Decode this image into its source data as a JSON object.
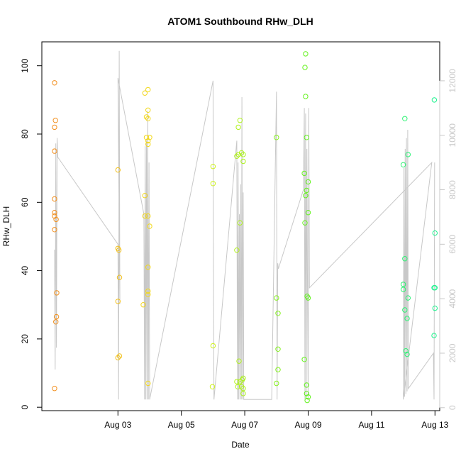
{
  "chart_data": {
    "type": "scatter",
    "title": "ATOM1 Southbound RHw_DLH",
    "xlabel": "Date",
    "ylabel": "RHw_DLH",
    "xlim": [
      0.6,
      13.15
    ],
    "ylim": [
      -1,
      107
    ],
    "x_ticks": [
      {
        "x": 3,
        "label": "Aug 03"
      },
      {
        "x": 5,
        "label": "Aug 05"
      },
      {
        "x": 7,
        "label": "Aug 07"
      },
      {
        "x": 9,
        "label": "Aug 09"
      },
      {
        "x": 11,
        "label": "Aug 11"
      },
      {
        "x": 13,
        "label": "Aug 13"
      }
    ],
    "y_ticks": [
      0,
      20,
      40,
      60,
      80,
      100
    ],
    "y2_ticks": [
      0,
      2000,
      4000,
      6000,
      8000,
      10000,
      12000
    ],
    "y2lim": [
      -110,
      13430
    ],
    "colors": {
      "line": "#c8c8c8",
      "axis": "#000000",
      "secondary_axis": "#c8c8c8",
      "scatter_ramp": [
        "#f28e1c",
        "#f2f21c",
        "#60f21c",
        "#1cf28e"
      ]
    },
    "scatter": [
      {
        "x": 1.0,
        "y": 95
      },
      {
        "x": 1.03,
        "y": 84
      },
      {
        "x": 1.0,
        "y": 82
      },
      {
        "x": 1.0,
        "y": 75
      },
      {
        "x": 1.0,
        "y": 61
      },
      {
        "x": 1.0,
        "y": 57
      },
      {
        "x": 1.0,
        "y": 56
      },
      {
        "x": 1.05,
        "y": 55
      },
      {
        "x": 1.0,
        "y": 52
      },
      {
        "x": 1.07,
        "y": 33.5
      },
      {
        "x": 1.06,
        "y": 26.5
      },
      {
        "x": 1.04,
        "y": 25
      },
      {
        "x": 1.0,
        "y": 5.5
      },
      {
        "x": 3.0,
        "y": 69.5
      },
      {
        "x": 3.0,
        "y": 46.5
      },
      {
        "x": 3.03,
        "y": 46
      },
      {
        "x": 3.05,
        "y": 38
      },
      {
        "x": 3.0,
        "y": 31
      },
      {
        "x": 3.05,
        "y": 15
      },
      {
        "x": 3.0,
        "y": 14.5
      },
      {
        "x": 3.85,
        "y": 92
      },
      {
        "x": 3.95,
        "y": 93
      },
      {
        "x": 3.95,
        "y": 87
      },
      {
        "x": 3.9,
        "y": 85
      },
      {
        "x": 3.95,
        "y": 84.5
      },
      {
        "x": 3.9,
        "y": 79
      },
      {
        "x": 4.0,
        "y": 79
      },
      {
        "x": 3.95,
        "y": 78
      },
      {
        "x": 3.95,
        "y": 77
      },
      {
        "x": 3.85,
        "y": 62
      },
      {
        "x": 3.85,
        "y": 56
      },
      {
        "x": 3.95,
        "y": 56
      },
      {
        "x": 4.0,
        "y": 53
      },
      {
        "x": 3.95,
        "y": 41
      },
      {
        "x": 3.95,
        "y": 34
      },
      {
        "x": 3.95,
        "y": 33
      },
      {
        "x": 3.8,
        "y": 30
      },
      {
        "x": 3.95,
        "y": 7
      },
      {
        "x": 6.0,
        "y": 70.5
      },
      {
        "x": 6.0,
        "y": 65.5
      },
      {
        "x": 6.0,
        "y": 18
      },
      {
        "x": 5.98,
        "y": 6
      },
      {
        "x": 6.75,
        "y": 46
      },
      {
        "x": 6.8,
        "y": 82
      },
      {
        "x": 6.85,
        "y": 84
      },
      {
        "x": 6.8,
        "y": 74
      },
      {
        "x": 6.75,
        "y": 73.5
      },
      {
        "x": 6.9,
        "y": 74.5
      },
      {
        "x": 6.95,
        "y": 74
      },
      {
        "x": 6.95,
        "y": 72
      },
      {
        "x": 6.85,
        "y": 54
      },
      {
        "x": 6.82,
        "y": 13.5
      },
      {
        "x": 6.75,
        "y": 7.5
      },
      {
        "x": 6.85,
        "y": 7.5
      },
      {
        "x": 6.92,
        "y": 8
      },
      {
        "x": 6.95,
        "y": 8.5
      },
      {
        "x": 6.78,
        "y": 6
      },
      {
        "x": 6.9,
        "y": 6
      },
      {
        "x": 6.95,
        "y": 5.5
      },
      {
        "x": 6.95,
        "y": 4
      },
      {
        "x": 8.0,
        "y": 79
      },
      {
        "x": 8.0,
        "y": 32
      },
      {
        "x": 8.05,
        "y": 27.5
      },
      {
        "x": 8.05,
        "y": 17
      },
      {
        "x": 8.05,
        "y": 11
      },
      {
        "x": 8.0,
        "y": 7
      },
      {
        "x": 8.92,
        "y": 103.5
      },
      {
        "x": 8.9,
        "y": 99.5
      },
      {
        "x": 8.92,
        "y": 91
      },
      {
        "x": 8.95,
        "y": 79
      },
      {
        "x": 8.88,
        "y": 68.5
      },
      {
        "x": 9.0,
        "y": 66
      },
      {
        "x": 8.95,
        "y": 63.5
      },
      {
        "x": 8.92,
        "y": 62
      },
      {
        "x": 9.0,
        "y": 57
      },
      {
        "x": 8.9,
        "y": 54
      },
      {
        "x": 8.97,
        "y": 32.5
      },
      {
        "x": 9.0,
        "y": 32
      },
      {
        "x": 8.88,
        "y": 14
      },
      {
        "x": 8.95,
        "y": 6.5
      },
      {
        "x": 8.95,
        "y": 4
      },
      {
        "x": 9.0,
        "y": 3
      },
      {
        "x": 8.97,
        "y": 2
      },
      {
        "x": 12.0,
        "y": 71
      },
      {
        "x": 12.05,
        "y": 84.5
      },
      {
        "x": 12.15,
        "y": 74
      },
      {
        "x": 12.05,
        "y": 43.5
      },
      {
        "x": 12.0,
        "y": 36
      },
      {
        "x": 12.0,
        "y": 34.5
      },
      {
        "x": 12.15,
        "y": 32
      },
      {
        "x": 12.05,
        "y": 28.5
      },
      {
        "x": 12.12,
        "y": 26
      },
      {
        "x": 12.08,
        "y": 16.5
      },
      {
        "x": 12.12,
        "y": 15.5
      },
      {
        "x": 12.98,
        "y": 90
      },
      {
        "x": 13.0,
        "y": 51
      },
      {
        "x": 12.97,
        "y": 35
      },
      {
        "x": 13.0,
        "y": 35
      },
      {
        "x": 13.0,
        "y": 29
      },
      {
        "x": 12.97,
        "y": 21
      }
    ],
    "line_series": [
      {
        "x": 1.0,
        "y": 5800
      },
      {
        "x": 1.02,
        "y": 1400
      },
      {
        "x": 1.04,
        "y": 9700
      },
      {
        "x": 1.06,
        "y": 2200
      },
      {
        "x": 1.08,
        "y": 9900
      },
      {
        "x": 1.1,
        "y": 9200
      },
      {
        "x": 3.0,
        "y": 6000
      },
      {
        "x": 3.02,
        "y": 300
      },
      {
        "x": 3.04,
        "y": 13100
      },
      {
        "x": 3.06,
        "y": 3800
      },
      {
        "x": 3.0,
        "y": 12100
      },
      {
        "x": 3.82,
        "y": 7100
      },
      {
        "x": 3.84,
        "y": 300
      },
      {
        "x": 3.86,
        "y": 9600
      },
      {
        "x": 3.88,
        "y": 300
      },
      {
        "x": 3.9,
        "y": 9800
      },
      {
        "x": 3.92,
        "y": 300
      },
      {
        "x": 3.94,
        "y": 10900
      },
      {
        "x": 3.96,
        "y": 300
      },
      {
        "x": 3.98,
        "y": 9000
      },
      {
        "x": 4.0,
        "y": 300
      },
      {
        "x": 6.0,
        "y": 12000
      },
      {
        "x": 6.01,
        "y": 5900
      },
      {
        "x": 6.03,
        "y": 300
      },
      {
        "x": 6.75,
        "y": 9800
      },
      {
        "x": 6.77,
        "y": 300
      },
      {
        "x": 6.79,
        "y": 9000
      },
      {
        "x": 6.81,
        "y": 300
      },
      {
        "x": 6.83,
        "y": 7100
      },
      {
        "x": 6.85,
        "y": 300
      },
      {
        "x": 6.87,
        "y": 8200
      },
      {
        "x": 6.89,
        "y": 300
      },
      {
        "x": 6.91,
        "y": 11400
      },
      {
        "x": 6.93,
        "y": 300
      },
      {
        "x": 6.95,
        "y": 7900
      },
      {
        "x": 6.97,
        "y": 300
      },
      {
        "x": 7.85,
        "y": 300
      },
      {
        "x": 8.0,
        "y": 11600
      },
      {
        "x": 8.02,
        "y": 300
      },
      {
        "x": 8.04,
        "y": 5300
      },
      {
        "x": 8.06,
        "y": 5100
      },
      {
        "x": 8.85,
        "y": 8000
      },
      {
        "x": 8.88,
        "y": 11000
      },
      {
        "x": 8.9,
        "y": 300
      },
      {
        "x": 8.92,
        "y": 10800
      },
      {
        "x": 8.94,
        "y": 400
      },
      {
        "x": 8.96,
        "y": 9500
      },
      {
        "x": 8.98,
        "y": 4200
      },
      {
        "x": 9.0,
        "y": 300
      },
      {
        "x": 9.02,
        "y": 11000
      },
      {
        "x": 9.04,
        "y": 4400
      },
      {
        "x": 12.9,
        "y": 9000
      },
      {
        "x": 12.0,
        "y": 300
      },
      {
        "x": 12.02,
        "y": 8800
      },
      {
        "x": 12.04,
        "y": 400
      },
      {
        "x": 12.06,
        "y": 9500
      },
      {
        "x": 12.08,
        "y": 500
      },
      {
        "x": 12.1,
        "y": 9900
      },
      {
        "x": 12.12,
        "y": 600
      },
      {
        "x": 12.14,
        "y": 10200
      },
      {
        "x": 12.16,
        "y": 700
      },
      {
        "x": 12.95,
        "y": 2000
      },
      {
        "x": 12.97,
        "y": 300
      },
      {
        "x": 12.99,
        "y": 9000
      }
    ]
  }
}
